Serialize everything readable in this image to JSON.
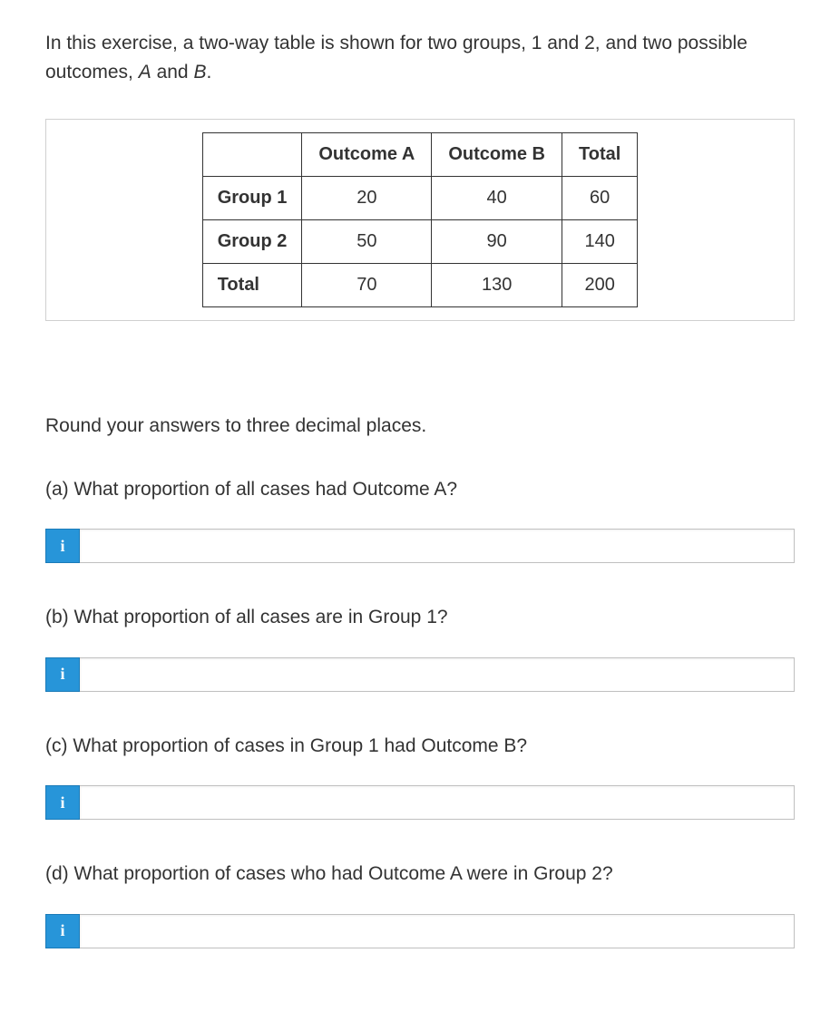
{
  "intro": {
    "prefix": "In this exercise, a two-way table is shown for two groups, 1 and 2, and two possible outcomes, ",
    "italic_a": "A",
    "mid": " and ",
    "italic_b": "B",
    "suffix": "."
  },
  "table": {
    "columns": [
      "",
      "Outcome A",
      "Outcome B",
      "Total"
    ],
    "rows": [
      {
        "header": "Group 1",
        "cells": [
          "20",
          "40",
          "60"
        ]
      },
      {
        "header": "Group 2",
        "cells": [
          "50",
          "90",
          "140"
        ]
      },
      {
        "header": "Total",
        "cells": [
          "70",
          "130",
          "200"
        ]
      }
    ],
    "border_color": "#333333",
    "container_border_color": "#d0d0d0",
    "font_size": 20,
    "cell_padding_v": 12,
    "cell_padding_h": 18
  },
  "instruction": "Round your answers to three decimal places.",
  "questions": {
    "a": {
      "label": "(a) What proportion of all cases had Outcome A?",
      "value": ""
    },
    "b": {
      "label": "(b) What proportion of all cases are in Group 1?",
      "value": ""
    },
    "c": {
      "label": "(c) What proportion of cases in Group 1 had Outcome B?",
      "value": ""
    },
    "d": {
      "label": "(d) What proportion of cases who had Outcome A were in Group 2?",
      "value": ""
    }
  },
  "info_button": {
    "glyph": "i",
    "bg_color": "#2795d9",
    "fg_color": "#ffffff"
  },
  "colors": {
    "text": "#333333",
    "background": "#ffffff",
    "input_border": "#c0c0c0"
  },
  "typography": {
    "body_font_size": 21,
    "line_height": 1.5
  }
}
